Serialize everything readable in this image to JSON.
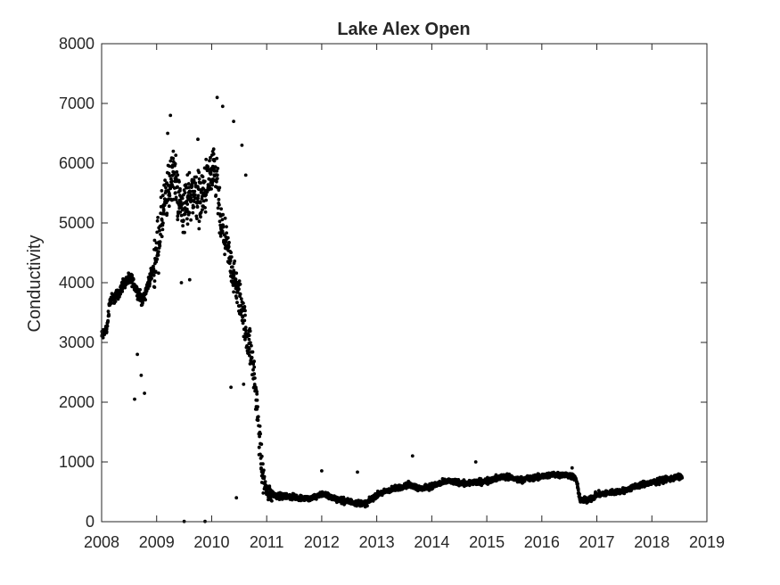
{
  "chart_data": {
    "type": "scatter",
    "title": "Lake Alex Open",
    "xlabel": "",
    "ylabel": "Conductivity",
    "xlim": [
      2008,
      2019
    ],
    "ylim": [
      0,
      8000
    ],
    "xticks": [
      2008,
      2009,
      2010,
      2011,
      2012,
      2013,
      2014,
      2015,
      2016,
      2017,
      2018,
      2019
    ],
    "yticks": [
      0,
      1000,
      2000,
      3000,
      4000,
      5000,
      6000,
      7000,
      8000
    ],
    "grid": false,
    "marker_color": "#000000",
    "trend": [
      [
        2008.0,
        3100
      ],
      [
        2008.1,
        3250
      ],
      [
        2008.15,
        3700
      ],
      [
        2008.3,
        3800
      ],
      [
        2008.4,
        4000
      ],
      [
        2008.55,
        4050
      ],
      [
        2008.65,
        3850
      ],
      [
        2008.75,
        3700
      ],
      [
        2008.85,
        4000
      ],
      [
        2008.95,
        4250
      ],
      [
        2009.05,
        4800
      ],
      [
        2009.12,
        5200
      ],
      [
        2009.2,
        5500
      ],
      [
        2009.3,
        5900
      ],
      [
        2009.4,
        5400
      ],
      [
        2009.5,
        5200
      ],
      [
        2009.6,
        5500
      ],
      [
        2009.7,
        5500
      ],
      [
        2009.8,
        5400
      ],
      [
        2009.9,
        5600
      ],
      [
        2010.0,
        5800
      ],
      [
        2010.1,
        5700
      ],
      [
        2010.15,
        5000
      ],
      [
        2010.25,
        4700
      ],
      [
        2010.35,
        4300
      ],
      [
        2010.45,
        3900
      ],
      [
        2010.55,
        3600
      ],
      [
        2010.62,
        3200
      ],
      [
        2010.7,
        2900
      ],
      [
        2010.78,
        2400
      ],
      [
        2010.85,
        1600
      ],
      [
        2010.92,
        800
      ],
      [
        2011.0,
        500
      ],
      [
        2011.2,
        430
      ],
      [
        2011.4,
        420
      ],
      [
        2011.6,
        400
      ],
      [
        2011.8,
        380
      ],
      [
        2012.0,
        470
      ],
      [
        2012.2,
        400
      ],
      [
        2012.4,
        350
      ],
      [
        2012.6,
        320
      ],
      [
        2012.8,
        300
      ],
      [
        2013.0,
        450
      ],
      [
        2013.2,
        520
      ],
      [
        2013.4,
        570
      ],
      [
        2013.6,
        620
      ],
      [
        2013.8,
        550
      ],
      [
        2014.0,
        600
      ],
      [
        2014.3,
        680
      ],
      [
        2014.6,
        640
      ],
      [
        2015.0,
        680
      ],
      [
        2015.3,
        760
      ],
      [
        2015.6,
        700
      ],
      [
        2015.9,
        740
      ],
      [
        2016.2,
        790
      ],
      [
        2016.5,
        780
      ],
      [
        2016.62,
        720
      ],
      [
        2016.7,
        350
      ],
      [
        2016.9,
        380
      ],
      [
        2017.0,
        450
      ],
      [
        2017.2,
        480
      ],
      [
        2017.5,
        520
      ],
      [
        2017.8,
        620
      ],
      [
        2018.0,
        650
      ],
      [
        2018.2,
        700
      ],
      [
        2018.4,
        730
      ],
      [
        2018.55,
        760
      ]
    ],
    "outliers": [
      [
        2009.5,
        5
      ],
      [
        2009.88,
        5
      ],
      [
        2010.45,
        400
      ],
      [
        2012.0,
        850
      ],
      [
        2012.65,
        830
      ],
      [
        2013.65,
        1100
      ],
      [
        2014.8,
        1000
      ],
      [
        2016.55,
        900
      ],
      [
        2008.65,
        2800
      ],
      [
        2008.72,
        2450
      ],
      [
        2008.6,
        2050
      ],
      [
        2008.78,
        2150
      ],
      [
        2009.2,
        6500
      ],
      [
        2009.25,
        6800
      ],
      [
        2009.75,
        6400
      ],
      [
        2010.1,
        7100
      ],
      [
        2010.2,
        6950
      ],
      [
        2010.4,
        6700
      ],
      [
        2010.55,
        6300
      ],
      [
        2010.62,
        5800
      ],
      [
        2009.45,
        4000
      ],
      [
        2009.6,
        4050
      ],
      [
        2010.35,
        2250
      ],
      [
        2010.58,
        2300
      ]
    ]
  }
}
